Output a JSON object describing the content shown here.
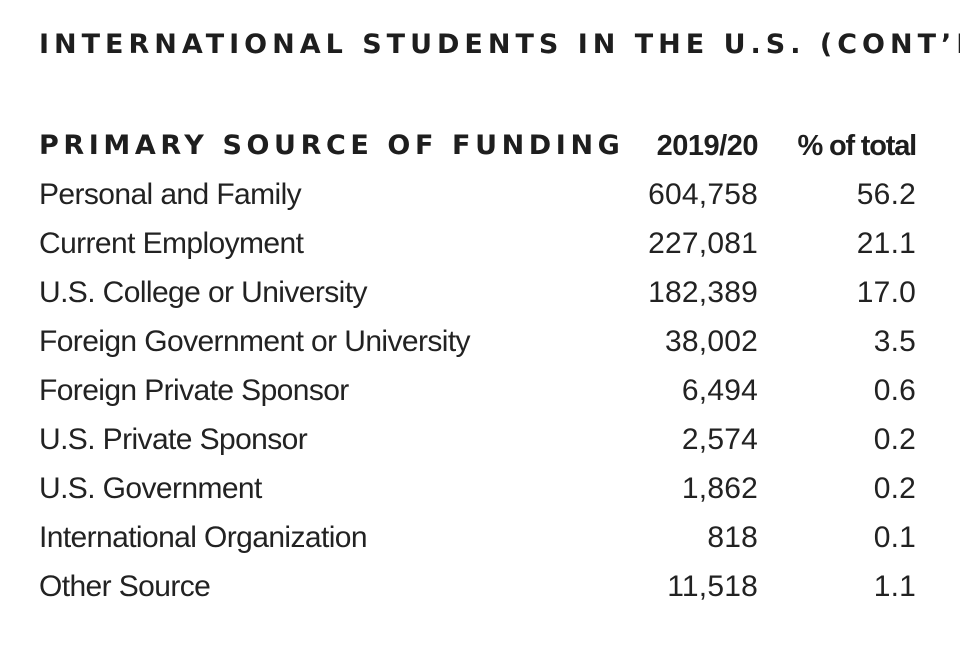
{
  "title": "INTERNATIONAL STUDENTS IN THE U.S. (CONT’D)",
  "table": {
    "headers": {
      "category": "PRIMARY SOURCE OF FUNDING",
      "year": "2019/20",
      "percent": "% of total"
    },
    "rows": [
      {
        "source": "Personal and Family",
        "count": "604,758",
        "percent": "56.2"
      },
      {
        "source": "Current Employment",
        "count": "227,081",
        "percent": "21.1"
      },
      {
        "source": "U.S. College or University",
        "count": "182,389",
        "percent": "17.0"
      },
      {
        "source": "Foreign Government or University",
        "count": "38,002",
        "percent": "3.5"
      },
      {
        "source": "Foreign Private Sponsor",
        "count": "6,494",
        "percent": "0.6"
      },
      {
        "source": "U.S. Private Sponsor",
        "count": "2,574",
        "percent": "0.2"
      },
      {
        "source": "U.S. Government",
        "count": "1,862",
        "percent": "0.2"
      },
      {
        "source": "International Organization",
        "count": "818",
        "percent": "0.1"
      },
      {
        "source": "Other Source",
        "count": "11,518",
        "percent": "1.1"
      }
    ]
  }
}
